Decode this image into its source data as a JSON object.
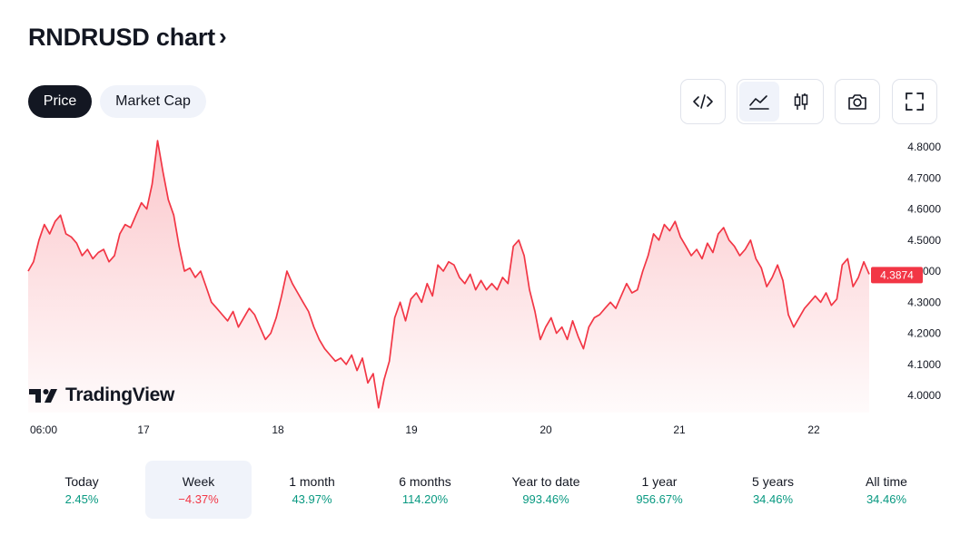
{
  "header": {
    "title": "RNDRUSD chart",
    "chevron": "›"
  },
  "tabs": [
    {
      "label": "Price",
      "active": true
    },
    {
      "label": "Market Cap",
      "active": false
    }
  ],
  "toolbar": {
    "embed_icon": "code-icon",
    "area_icon": "area-chart-icon",
    "candle_icon": "candlestick-icon",
    "camera_icon": "camera-icon",
    "fullscreen_icon": "fullscreen-icon",
    "active_style": "area"
  },
  "logo": {
    "text": "TradingView"
  },
  "chart_data": {
    "type": "area",
    "symbol": "RNDRUSD",
    "title": "",
    "xlabel": "",
    "ylabel": "",
    "ylim": [
      3.95,
      4.82
    ],
    "y_ticks": [
      "4.8000",
      "4.7000",
      "4.6000",
      "4.5000",
      "4.4000",
      "4.3000",
      "4.2000",
      "4.1000",
      "4.0000"
    ],
    "x_ticks": [
      "06:00",
      "17",
      "18",
      "19",
      "20",
      "21",
      "22"
    ],
    "last_price": 4.3874,
    "last_price_label": "4.3874",
    "grid": false,
    "line_color": "#f23645",
    "fill_color": "#f23645",
    "series": [
      {
        "values": [
          4.4,
          4.43,
          4.5,
          4.55,
          4.52,
          4.56,
          4.58,
          4.52,
          4.51,
          4.49,
          4.45,
          4.47,
          4.44,
          4.46,
          4.47,
          4.43,
          4.45,
          4.52,
          4.55,
          4.54,
          4.58,
          4.62,
          4.6,
          4.68,
          4.82,
          4.72,
          4.63,
          4.58,
          4.48,
          4.4,
          4.41,
          4.38,
          4.4,
          4.35,
          4.3,
          4.28,
          4.26,
          4.24,
          4.27,
          4.22,
          4.25,
          4.28,
          4.26,
          4.22,
          4.18,
          4.2,
          4.25,
          4.32,
          4.4,
          4.36,
          4.33,
          4.3,
          4.27,
          4.22,
          4.18,
          4.15,
          4.13,
          4.11,
          4.12,
          4.1,
          4.13,
          4.08,
          4.12,
          4.04,
          4.07,
          3.96,
          4.05,
          4.11,
          4.25,
          4.3,
          4.24,
          4.31,
          4.33,
          4.3,
          4.36,
          4.32,
          4.42,
          4.4,
          4.43,
          4.42,
          4.38,
          4.36,
          4.39,
          4.34,
          4.37,
          4.34,
          4.36,
          4.34,
          4.38,
          4.36,
          4.48,
          4.5,
          4.45,
          4.34,
          4.27,
          4.18,
          4.22,
          4.25,
          4.2,
          4.22,
          4.18,
          4.24,
          4.19,
          4.15,
          4.22,
          4.25,
          4.26,
          4.28,
          4.3,
          4.28,
          4.32,
          4.36,
          4.33,
          4.34,
          4.4,
          4.45,
          4.52,
          4.5,
          4.55,
          4.53,
          4.56,
          4.51,
          4.48,
          4.45,
          4.47,
          4.44,
          4.49,
          4.46,
          4.52,
          4.54,
          4.5,
          4.48,
          4.45,
          4.47,
          4.5,
          4.44,
          4.41,
          4.35,
          4.38,
          4.42,
          4.37,
          4.26,
          4.22,
          4.25,
          4.28,
          4.3,
          4.32,
          4.3,
          4.33,
          4.29,
          4.31,
          4.42,
          4.44,
          4.35,
          4.38,
          4.43,
          4.39
        ]
      }
    ]
  },
  "periods": [
    {
      "label": "Today",
      "value": "2.45%",
      "direction": "up",
      "active": false
    },
    {
      "label": "Week",
      "value": "−4.37%",
      "direction": "down",
      "active": true
    },
    {
      "label": "1 month",
      "value": "43.97%",
      "direction": "up",
      "active": false
    },
    {
      "label": "6 months",
      "value": "114.20%",
      "direction": "up",
      "active": false
    },
    {
      "label": "Year to date",
      "value": "993.46%",
      "direction": "up",
      "active": false
    },
    {
      "label": "1 year",
      "value": "956.67%",
      "direction": "up",
      "active": false
    },
    {
      "label": "5 years",
      "value": "34.46%",
      "direction": "up",
      "active": false
    },
    {
      "label": "All time",
      "value": "34.46%",
      "direction": "up",
      "active": false
    }
  ]
}
